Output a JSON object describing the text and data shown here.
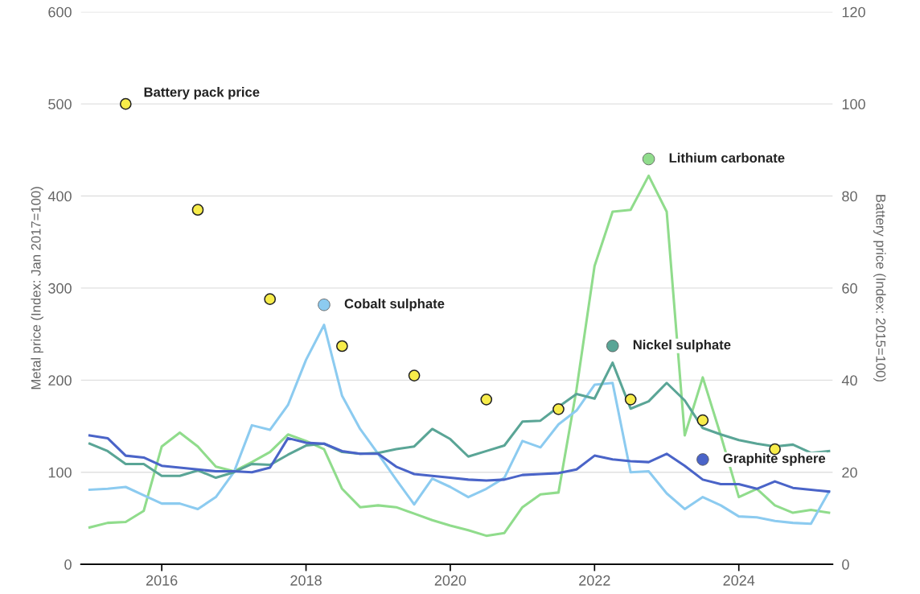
{
  "chart_data": {
    "type": "line",
    "ylabel": "Metal price (Index: Jan 2017=100)",
    "y2label": "Battery price (Index: 2015=100)",
    "x": [
      2015.0,
      2015.25,
      2015.5,
      2015.75,
      2016.0,
      2016.25,
      2016.5,
      2016.75,
      2017.0,
      2017.25,
      2017.5,
      2017.75,
      2018.0,
      2018.25,
      2018.5,
      2018.75,
      2019.0,
      2019.25,
      2019.5,
      2019.75,
      2020.0,
      2020.25,
      2020.5,
      2020.75,
      2021.0,
      2021.25,
      2021.5,
      2021.75,
      2022.0,
      2022.25,
      2022.5,
      2022.75,
      2023.0,
      2023.25,
      2023.5,
      2023.75,
      2024.0,
      2024.25,
      2024.5,
      2024.75,
      2025.0,
      2025.25
    ],
    "series": [
      {
        "name": "Lithium carbonate",
        "color": "#90dc8c",
        "values": [
          40,
          45,
          46,
          58,
          128,
          143,
          128,
          106,
          101,
          111,
          122,
          141,
          134,
          125,
          82,
          62,
          64,
          62,
          55,
          48,
          42,
          37,
          31,
          34,
          62,
          76,
          78,
          190,
          324,
          383,
          385,
          422,
          383,
          140,
          203,
          140,
          73,
          82,
          64,
          56,
          59,
          56
        ]
      },
      {
        "name": "Cobalt sulphate",
        "color": "#8ccbf0",
        "values": [
          81,
          82,
          84,
          75,
          66,
          66,
          60,
          73,
          100,
          151,
          146,
          173,
          222,
          260,
          183,
          147,
          120,
          92,
          65,
          93,
          84,
          73,
          82,
          94,
          134,
          127,
          152,
          167,
          195,
          197,
          100,
          101,
          77,
          60,
          73,
          64,
          52,
          51,
          47,
          45,
          44,
          79
        ]
      },
      {
        "name": "Nickel sulphate",
        "color": "#5aa596",
        "values": [
          131,
          123,
          109,
          109,
          96,
          96,
          102,
          94,
          100,
          109,
          108,
          119,
          129,
          131,
          122,
          120,
          121,
          125,
          128,
          147,
          136,
          117,
          123,
          129,
          155,
          156,
          171,
          185,
          180,
          219,
          169,
          177,
          197,
          178,
          148,
          141,
          135,
          131,
          128,
          130,
          121,
          123
        ]
      },
      {
        "name": "Graphite sphere",
        "color": "#4a64c8",
        "values": [
          140,
          137,
          118,
          116,
          107,
          105,
          103,
          101,
          101,
          100,
          105,
          137,
          132,
          131,
          123,
          120,
          120,
          106,
          98,
          96,
          94,
          92,
          91,
          92,
          97,
          98,
          99,
          103,
          118,
          114,
          112,
          111,
          120,
          107,
          92,
          87,
          87,
          82,
          90,
          83,
          81,
          79
        ]
      },
      {
        "name": "Battery pack price",
        "type": "scatter",
        "axis": "y2",
        "color": "#f7ec4a",
        "x": [
          2015.5,
          2016.5,
          2017.5,
          2018.5,
          2019.5,
          2020.5,
          2021.5,
          2022.5,
          2023.5,
          2024.5
        ],
        "values": [
          100,
          77,
          57.6,
          47.4,
          41,
          35.8,
          33.7,
          35.8,
          31.3,
          25
        ]
      }
    ],
    "xlim": [
      2014.88,
      2025.3
    ],
    "xticks": [
      2016,
      2018,
      2020,
      2022,
      2024
    ],
    "ylim": [
      0,
      600
    ],
    "yticks": [
      0,
      100,
      200,
      300,
      400,
      500,
      600
    ],
    "y2lim": [
      0,
      120
    ],
    "y2ticks": [
      0,
      20,
      40,
      60,
      80,
      100,
      120
    ],
    "grid": "y",
    "legend": "right"
  }
}
